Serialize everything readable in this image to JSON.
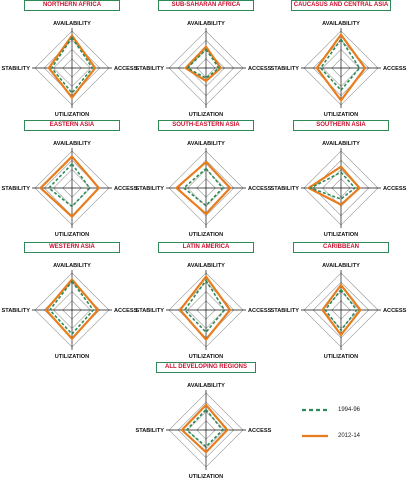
{
  "colors": {
    "grid": "#9a9a9a",
    "axis": "#111111",
    "series_1994": "#2e8b57",
    "series_2012": "#e87d1e",
    "title_text": "#c8102e",
    "title_border": "#2e8b57"
  },
  "legend": {
    "s1994": "1994-96",
    "s2012": "2012-14"
  },
  "chart_data": [
    {
      "type": "radar",
      "title": "NORTHERN AFRICA",
      "axes": [
        "AVAILABILITY",
        "ACCESS",
        "UTILIZATION",
        "STABILITY"
      ],
      "series": [
        {
          "name": "1994-96",
          "values": [
            3.3,
            2.2,
            2.7,
            2.2
          ]
        },
        {
          "name": "2012-14",
          "values": [
            3.5,
            2.5,
            3.2,
            2.5
          ]
        }
      ]
    },
    {
      "type": "radar",
      "title": "SUB-SAHARAN AFRICA",
      "axes": [
        "AVAILABILITY",
        "ACCESS",
        "UTILIZATION",
        "STABILITY"
      ],
      "series": [
        {
          "name": "1994-96",
          "values": [
            2.0,
            1.4,
            1.1,
            2.0
          ]
        },
        {
          "name": "2012-14",
          "values": [
            2.3,
            1.6,
            1.4,
            2.2
          ]
        }
      ]
    },
    {
      "type": "radar",
      "title": "CAUCASUS AND CENTRAL ASIA",
      "axes": [
        "AVAILABILITY",
        "ACCESS",
        "UTILIZATION",
        "STABILITY"
      ],
      "series": [
        {
          "name": "1994-96",
          "values": [
            3.1,
            2.0,
            2.4,
            2.2
          ]
        },
        {
          "name": "2012-14",
          "values": [
            3.6,
            2.6,
            3.5,
            2.6
          ]
        }
      ]
    },
    {
      "type": "radar",
      "title": "EASTERN ASIA",
      "axes": [
        "AVAILABILITY",
        "ACCESS",
        "UTILIZATION",
        "STABILITY"
      ],
      "series": [
        {
          "name": "1994-96",
          "values": [
            2.6,
            1.9,
            2.0,
            2.5
          ]
        },
        {
          "name": "2012-14",
          "values": [
            3.4,
            2.9,
            3.1,
            3.4
          ]
        }
      ]
    },
    {
      "type": "radar",
      "title": "SOUTH-EASTERN ASIA",
      "axes": [
        "AVAILABILITY",
        "ACCESS",
        "UTILIZATION",
        "STABILITY"
      ],
      "series": [
        {
          "name": "1994-96",
          "values": [
            2.1,
            1.8,
            1.9,
            2.4
          ]
        },
        {
          "name": "2012-14",
          "values": [
            2.8,
            2.6,
            2.8,
            3.2
          ]
        }
      ]
    },
    {
      "type": "radar",
      "title": "SOUTHERN ASIA",
      "axes": [
        "AVAILABILITY",
        "ACCESS",
        "UTILIZATION",
        "STABILITY"
      ],
      "series": [
        {
          "name": "1994-96",
          "values": [
            1.7,
            1.5,
            1.2,
            3.3
          ]
        },
        {
          "name": "2012-14",
          "values": [
            2.3,
            2.0,
            1.8,
            3.5
          ]
        }
      ]
    },
    {
      "type": "radar",
      "title": "WESTERN ASIA",
      "axes": [
        "AVAILABILITY",
        "ACCESS",
        "UTILIZATION",
        "STABILITY"
      ],
      "series": [
        {
          "name": "1994-96",
          "values": [
            3.1,
            2.3,
            2.6,
            2.4
          ]
        },
        {
          "name": "2012-14",
          "values": [
            3.3,
            2.8,
            3.1,
            2.8
          ]
        }
      ]
    },
    {
      "type": "radar",
      "title": "LATIN AMERICA",
      "axes": [
        "AVAILABILITY",
        "ACCESS",
        "UTILIZATION",
        "STABILITY"
      ],
      "series": [
        {
          "name": "1994-96",
          "values": [
            3.2,
            2.0,
            2.4,
            2.3
          ]
        },
        {
          "name": "2012-14",
          "values": [
            3.6,
            2.6,
            3.2,
            2.8
          ]
        }
      ]
    },
    {
      "type": "radar",
      "title": "CARIBBEAN",
      "axes": [
        "AVAILABILITY",
        "ACCESS",
        "UTILIZATION",
        "STABILITY"
      ],
      "series": [
        {
          "name": "1994-96",
          "values": [
            2.2,
            1.7,
            2.2,
            1.7
          ]
        },
        {
          "name": "2012-14",
          "values": [
            2.7,
            2.1,
            2.7,
            2.0
          ]
        }
      ]
    },
    {
      "type": "radar",
      "title": "ALL DEVELOPING REGIONS",
      "axes": [
        "AVAILABILITY",
        "ACCESS",
        "UTILIZATION",
        "STABILITY"
      ],
      "series": [
        {
          "name": "1994-96",
          "values": [
            2.2,
            1.8,
            1.8,
            2.1
          ]
        },
        {
          "name": "2012-14",
          "values": [
            2.7,
            2.3,
            2.4,
            2.6
          ]
        }
      ]
    }
  ]
}
